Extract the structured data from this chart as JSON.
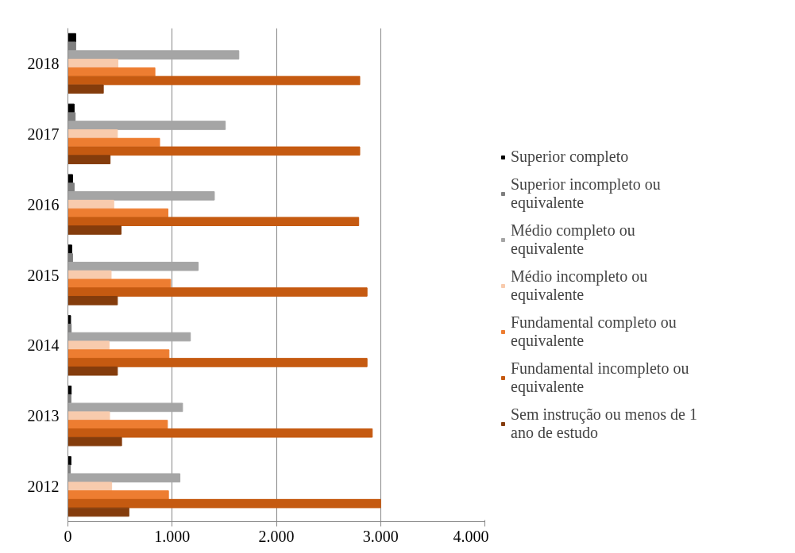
{
  "chart_data": {
    "type": "bar",
    "orientation": "horizontal",
    "categories": [
      "2018",
      "2017",
      "2016",
      "2015",
      "2014",
      "2013",
      "2012"
    ],
    "series": [
      {
        "name": "Superior completo",
        "color": "#000000",
        "values": [
          75,
          60,
          45,
          37,
          26,
          32,
          29
        ]
      },
      {
        "name": "Superior incompleto ou equivalente",
        "color": "#7f7f7f",
        "values": [
          75,
          70,
          60,
          45,
          32,
          29,
          24
        ]
      },
      {
        "name": "Médio completo ou equivalente",
        "color": "#a5a5a5",
        "values": [
          1640,
          1510,
          1405,
          1250,
          1175,
          1100,
          1075
        ]
      },
      {
        "name": "Médio incompleto ou equivalente",
        "color": "#f8cbad",
        "values": [
          480,
          475,
          440,
          415,
          395,
          400,
          420
        ]
      },
      {
        "name": "Fundamental completo ou equivalente",
        "color": "#ed7d31",
        "values": [
          835,
          880,
          960,
          985,
          970,
          955,
          965
        ]
      },
      {
        "name": "Fundamental incompleto ou equivalente",
        "color": "#c55a11",
        "values": [
          2800,
          2800,
          2790,
          2870,
          2870,
          2920,
          3000
        ]
      },
      {
        "name": "Sem instrução ou menos de 1 ano de estudo",
        "color": "#843c0c",
        "values": [
          340,
          405,
          510,
          475,
          475,
          515,
          585
        ]
      }
    ],
    "xlim": [
      0,
      4000
    ],
    "xticks": [
      0,
      {
        "value": 1000,
        "label": "1.000"
      },
      {
        "value": 2000,
        "label": "2.000"
      },
      {
        "value": 3000,
        "label": "3.000"
      },
      {
        "value": 4000,
        "label": "4.000"
      }
    ],
    "grid": "x",
    "legend": "right"
  }
}
